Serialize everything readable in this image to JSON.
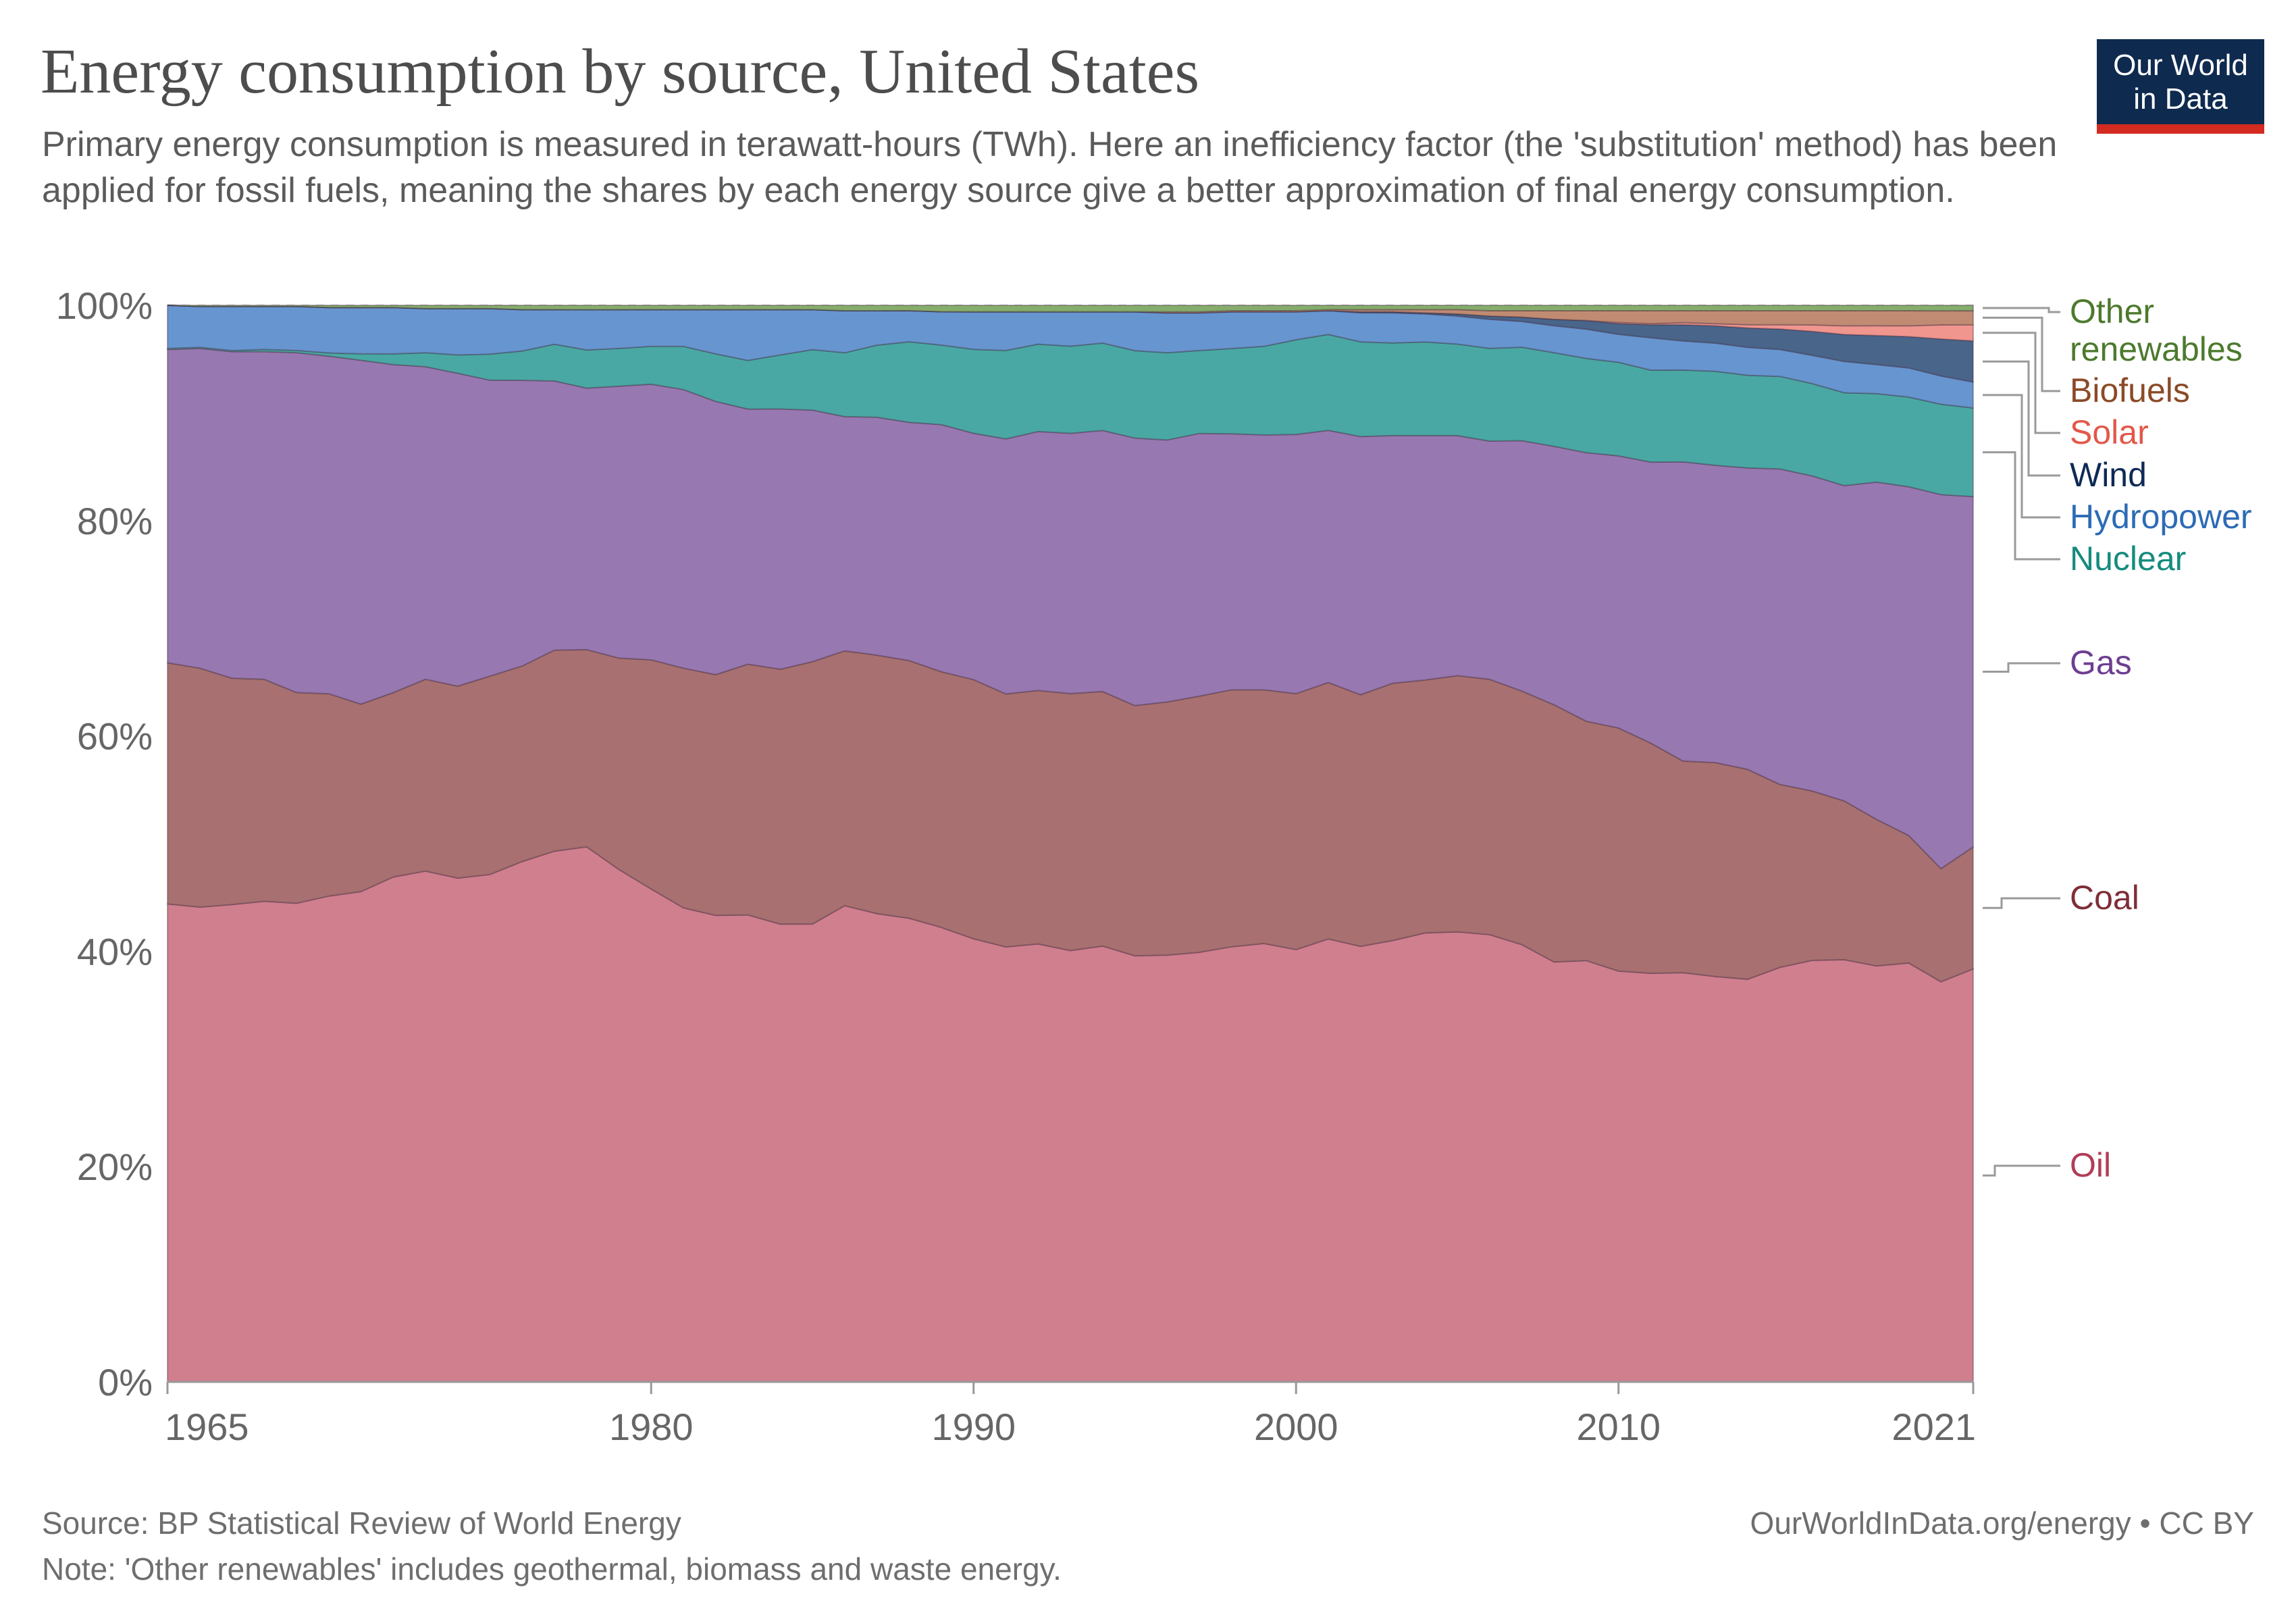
{
  "title": "Energy consumption by source, United States",
  "subtitle": "Primary energy consumption is measured in terawatt-hours (TWh). Here an inefficiency factor (the 'substitution' method) has been applied for fossil fuels, meaning the shares by each energy source give a better approximation of final energy consumption.",
  "logo": {
    "line1": "Our World",
    "line2": "in Data"
  },
  "footer": {
    "source": "Source: BP Statistical Review of World Energy",
    "note": "Note: 'Other renewables' includes geothermal, biomass and waste energy.",
    "license": "OurWorldInData.org/energy • CC BY"
  },
  "chart_data": {
    "type": "area",
    "stacked": "percent",
    "x": [
      1965,
      1966,
      1967,
      1968,
      1969,
      1970,
      1971,
      1972,
      1973,
      1974,
      1975,
      1976,
      1977,
      1978,
      1979,
      1980,
      1981,
      1982,
      1983,
      1984,
      1985,
      1986,
      1987,
      1988,
      1989,
      1990,
      1991,
      1992,
      1993,
      1994,
      1995,
      1996,
      1997,
      1998,
      1999,
      2000,
      2001,
      2002,
      2003,
      2004,
      2005,
      2006,
      2007,
      2008,
      2009,
      2010,
      2011,
      2012,
      2013,
      2014,
      2015,
      2016,
      2017,
      2018,
      2019,
      2020,
      2021
    ],
    "x_ticks": [
      1965,
      1980,
      1990,
      2000,
      2010,
      2021
    ],
    "y_ticks": [
      0,
      20,
      40,
      60,
      80,
      100
    ],
    "y_tick_labels": [
      "0%",
      "20%",
      "40%",
      "60%",
      "80%",
      "100%"
    ],
    "ylim": [
      0,
      100
    ],
    "grid": "horizontal dashed",
    "legend": "right, labels at series end",
    "series": [
      {
        "name": "Oil",
        "color": "#d07f8e",
        "label_color": "#b13d57",
        "values": [
          44.4,
          44.1,
          44.3,
          44.6,
          44.5,
          44.9,
          45.5,
          46.8,
          47.4,
          46.7,
          46.8,
          47.9,
          49.1,
          49.1,
          47.5,
          45.6,
          43.9,
          43.2,
          43.2,
          42.4,
          42.4,
          44.1,
          43.5,
          43.2,
          42.3,
          41.2,
          40.4,
          40.6,
          40.1,
          40.4,
          39.5,
          39.6,
          39.9,
          40.3,
          40.6,
          40.2,
          41.1,
          40.5,
          41.0,
          41.7,
          41.8,
          41.5,
          40.7,
          39.0,
          38.9,
          38.2,
          37.8,
          37.9,
          37.5,
          37.4,
          38.5,
          38.8,
          39.1,
          38.6,
          38.8,
          36.8,
          38.2
        ]
      },
      {
        "name": "Coal",
        "color": "#a87070",
        "label_color": "#7f2e38",
        "values": [
          22.4,
          22.2,
          21.0,
          20.6,
          19.6,
          18.7,
          17.4,
          17.1,
          17.8,
          17.8,
          18.3,
          18.0,
          18.6,
          18.1,
          19.6,
          21.2,
          22.2,
          22.3,
          23.2,
          23.6,
          24.3,
          23.6,
          24.0,
          24.0,
          23.8,
          24.1,
          23.5,
          23.5,
          23.9,
          23.6,
          23.2,
          23.5,
          23.8,
          23.8,
          23.5,
          23.8,
          23.8,
          23.4,
          23.9,
          23.5,
          23.8,
          23.7,
          23.6,
          23.9,
          22.1,
          22.6,
          21.3,
          19.6,
          19.8,
          19.5,
          17.0,
          15.6,
          14.7,
          13.6,
          11.8,
          10.4,
          11.3
        ]
      },
      {
        "name": "Gas",
        "color": "#9878b0",
        "label_color": "#6d3e91",
        "values": [
          29.1,
          29.7,
          30.3,
          30.4,
          31.6,
          31.2,
          31.9,
          30.4,
          29.0,
          29.0,
          27.3,
          26.3,
          24.9,
          24.0,
          25.2,
          25.5,
          25.8,
          25.3,
          23.6,
          24.1,
          23.3,
          21.7,
          22.1,
          22.2,
          23.0,
          22.9,
          23.7,
          24.0,
          24.2,
          24.2,
          24.8,
          24.3,
          24.4,
          23.7,
          23.6,
          24.1,
          23.4,
          24.0,
          23.0,
          22.7,
          22.3,
          22.1,
          23.3,
          24.0,
          24.8,
          25.3,
          26.0,
          27.7,
          27.5,
          28.0,
          29.3,
          29.0,
          29.2,
          31.3,
          32.3,
          34.4,
          32.4
        ]
      },
      {
        "name": "Nuclear",
        "color": "#4aa8a4",
        "label_color": "#168b7f",
        "values": [
          0.1,
          0.1,
          0.1,
          0.2,
          0.2,
          0.3,
          0.6,
          1.0,
          1.3,
          1.7,
          2.4,
          2.7,
          3.4,
          3.5,
          3.5,
          3.5,
          4.0,
          4.4,
          4.5,
          5.0,
          5.6,
          5.9,
          6.7,
          7.5,
          7.4,
          7.8,
          8.2,
          8.1,
          8.1,
          8.1,
          8.1,
          8.1,
          7.7,
          7.9,
          8.2,
          8.8,
          8.9,
          8.8,
          8.6,
          8.7,
          8.5,
          8.6,
          8.7,
          8.7,
          8.7,
          8.7,
          8.5,
          8.5,
          8.7,
          8.6,
          8.6,
          8.5,
          8.6,
          8.2,
          8.3,
          8.3,
          8.2
        ]
      },
      {
        "name": "Hydropower",
        "color": "#6795cf",
        "label_color": "#2c6bb5",
        "values": [
          4.0,
          3.8,
          4.1,
          4.0,
          4.1,
          4.2,
          4.3,
          4.3,
          4.1,
          4.3,
          4.2,
          3.8,
          3.2,
          3.7,
          3.6,
          3.4,
          3.4,
          4.1,
          4.7,
          4.2,
          3.7,
          3.9,
          3.2,
          2.9,
          3.1,
          3.5,
          3.6,
          3.0,
          3.2,
          2.9,
          3.6,
          3.7,
          3.5,
          3.4,
          3.2,
          2.6,
          2.2,
          2.7,
          2.8,
          2.6,
          2.6,
          2.7,
          2.4,
          2.5,
          2.7,
          2.6,
          3.0,
          2.7,
          2.6,
          2.6,
          2.5,
          2.6,
          2.9,
          2.7,
          2.7,
          2.6,
          2.4
        ]
      },
      {
        "name": "Wind",
        "color": "#49658a",
        "label_color": "#0e2a55",
        "values": [
          0,
          0,
          0,
          0,
          0,
          0,
          0,
          0,
          0,
          0,
          0,
          0,
          0,
          0,
          0,
          0,
          0,
          0,
          0,
          0,
          0,
          0,
          0,
          0,
          0,
          0,
          0,
          0,
          0,
          0,
          0,
          0,
          0,
          0,
          0,
          0,
          0,
          0.1,
          0.1,
          0.1,
          0.2,
          0.3,
          0.4,
          0.6,
          0.8,
          1.0,
          1.2,
          1.5,
          1.6,
          1.8,
          1.9,
          2.2,
          2.5,
          2.7,
          2.9,
          3.4,
          3.8
        ]
      },
      {
        "name": "Solar",
        "color": "#f0968e",
        "label_color": "#e2584a",
        "values": [
          0,
          0,
          0,
          0,
          0,
          0,
          0,
          0,
          0,
          0,
          0,
          0,
          0,
          0,
          0,
          0,
          0,
          0,
          0,
          0,
          0,
          0,
          0,
          0,
          0,
          0,
          0,
          0,
          0,
          0,
          0,
          0,
          0,
          0,
          0,
          0,
          0,
          0,
          0,
          0,
          0,
          0,
          0,
          0,
          0,
          0.1,
          0.1,
          0.2,
          0.2,
          0.3,
          0.4,
          0.6,
          0.8,
          0.9,
          1.0,
          1.3,
          1.5
        ]
      },
      {
        "name": "Biofuels",
        "color": "#c08b72",
        "label_color": "#8b4a27",
        "values": [
          0,
          0,
          0,
          0,
          0,
          0,
          0,
          0,
          0,
          0,
          0,
          0,
          0,
          0,
          0,
          0,
          0,
          0,
          0,
          0,
          0,
          0,
          0,
          0,
          0,
          0,
          0,
          0,
          0,
          0,
          0,
          0.1,
          0.1,
          0.1,
          0.1,
          0.1,
          0.1,
          0.2,
          0.2,
          0.3,
          0.4,
          0.5,
          0.6,
          0.8,
          0.9,
          1.1,
          1.2,
          1.1,
          1.2,
          1.3,
          1.3,
          1.3,
          1.4,
          1.4,
          1.4,
          1.3,
          1.3
        ]
      },
      {
        "name": "Other renewables",
        "color": "#86ad6b",
        "label_color": "#4d7a2e",
        "values": [
          0.0,
          0.1,
          0.1,
          0.1,
          0.1,
          0.2,
          0.2,
          0.2,
          0.3,
          0.3,
          0.3,
          0.4,
          0.4,
          0.4,
          0.4,
          0.4,
          0.4,
          0.4,
          0.4,
          0.4,
          0.4,
          0.5,
          0.5,
          0.5,
          0.6,
          0.6,
          0.6,
          0.6,
          0.6,
          0.6,
          0.6,
          0.6,
          0.6,
          0.5,
          0.5,
          0.5,
          0.4,
          0.4,
          0.4,
          0.4,
          0.4,
          0.5,
          0.5,
          0.5,
          0.5,
          0.5,
          0.5,
          0.5,
          0.5,
          0.5,
          0.5,
          0.5,
          0.5,
          0.5,
          0.5,
          0.5,
          0.5
        ]
      }
    ]
  }
}
